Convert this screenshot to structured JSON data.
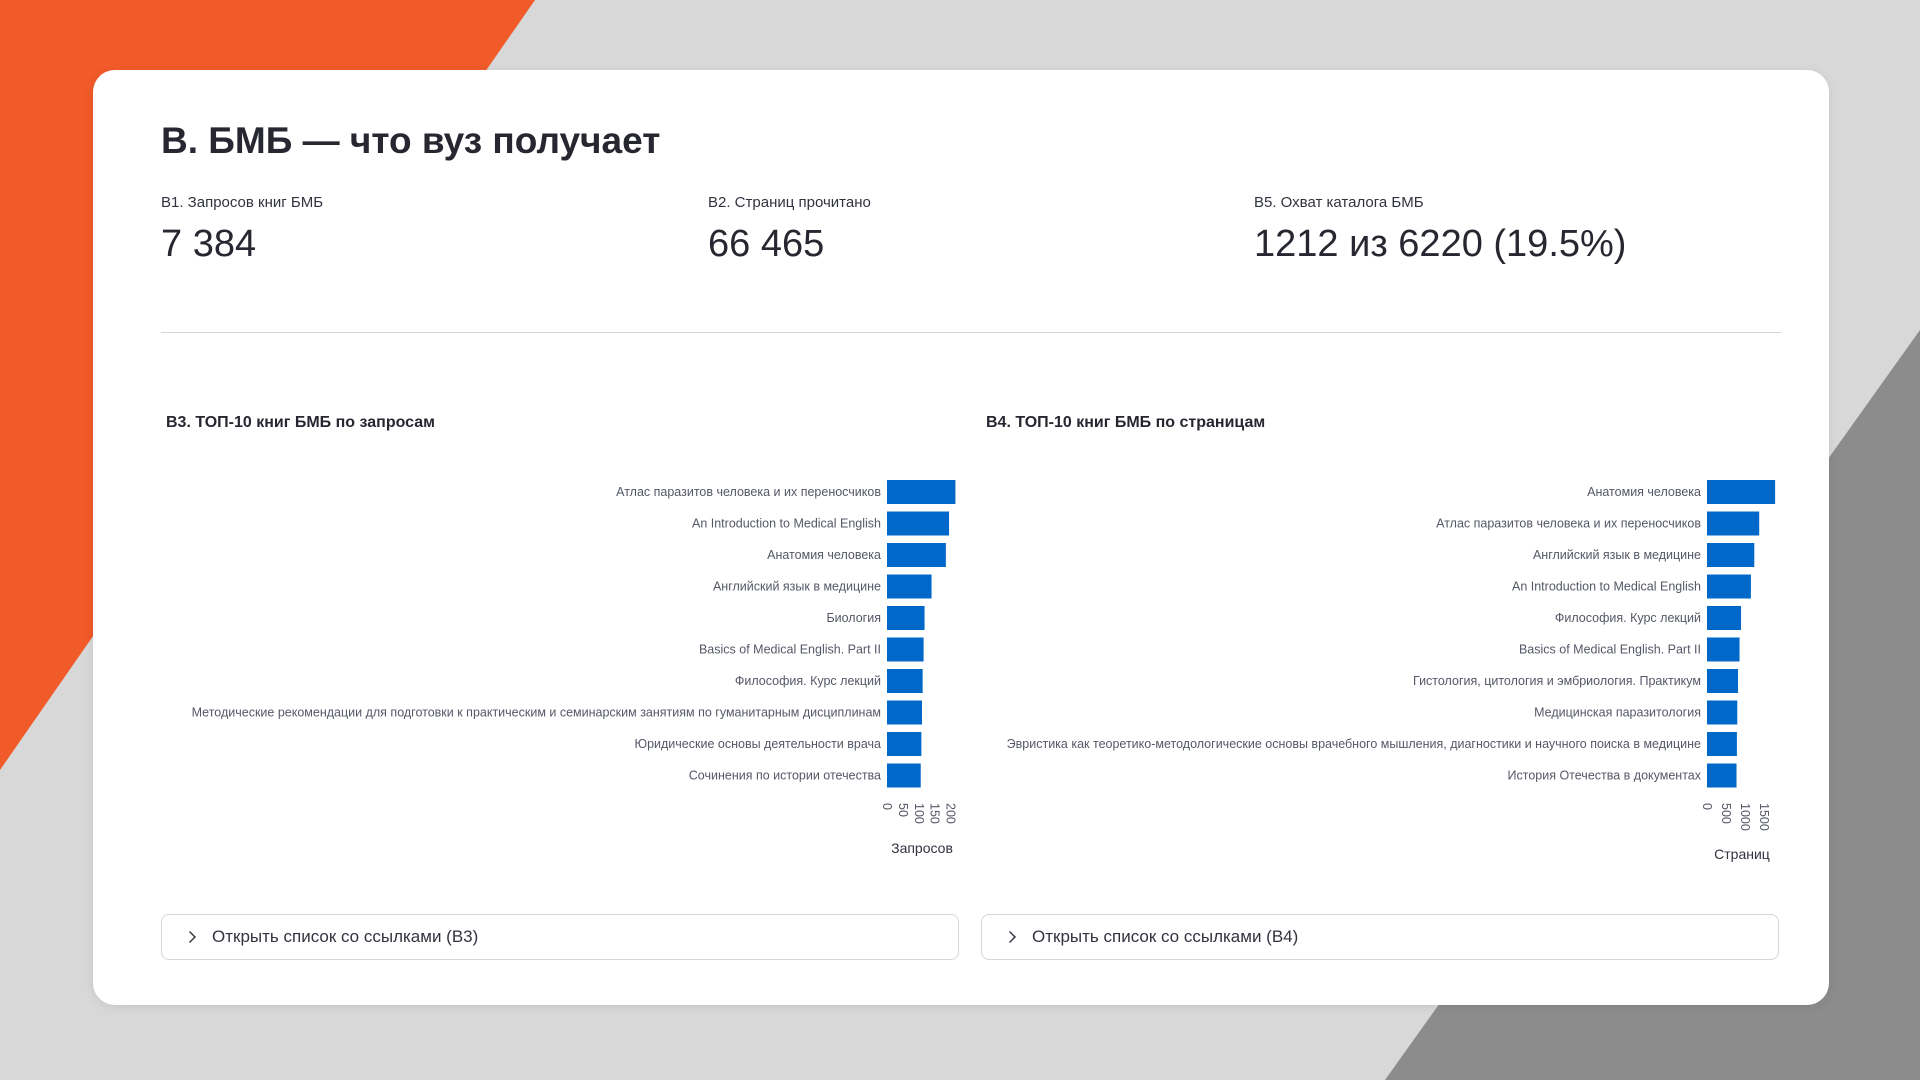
{
  "colors": {
    "accent": "#f15a29",
    "bar": "#0068c9",
    "background": "#d8d8d8",
    "dark_shape": "#8c8c8c"
  },
  "section_title": "B. БМБ — что вуз получает",
  "metrics": [
    {
      "label": "B1. Запросов книг БМБ",
      "value": "7 384"
    },
    {
      "label": "B2. Страниц прочитано",
      "value": "66 465"
    },
    {
      "label": "B5. Охват каталога БМБ",
      "value": "1212 из 6220 (19.5%)"
    }
  ],
  "charts": [
    {
      "title": "B3. ТОП-10 книг БМБ по запросам",
      "chart_data": {
        "type": "bar",
        "orientation": "horizontal",
        "categories": [
          "Атлас паразитов человека и их переносчиков",
          "An Introduction to Medical English",
          "Анатомия человека",
          "Английский язык в медицине",
          "Биология",
          "Basics of Medical English. Part II",
          "Философия. Курс лекций",
          "Методические рекомендации для подготовки к практическим и семинарским занятиям по гуманитарным дисциплинам",
          "Юридические основы деятельности врача",
          "Сочинения по истории отечества"
        ],
        "values": [
          215,
          195,
          185,
          140,
          118,
          115,
          112,
          110,
          108,
          106
        ],
        "xlabel": "Запросов",
        "ticks": [
          0,
          50,
          100,
          150,
          200
        ],
        "xlim": [
          0,
          220
        ]
      },
      "expander_label": "Открыть список со ссылками (B3)"
    },
    {
      "title": "B4. ТОП-10 книг БМБ по страницам",
      "chart_data": {
        "type": "bar",
        "orientation": "horizontal",
        "categories": [
          "Анатомия человека",
          "Атлас паразитов человека и их переносчиков",
          "Английский язык в медицине",
          "An Introduction to Medical English",
          "Философия. Курс лекций",
          "Basics of Medical English. Part II",
          "Гистология, цитология и эмбриология. Практикум",
          "Медицинская паразитология",
          "Эвристика как теоретико-методологические основы врачебного мышления, диагностики и научного поиска в медицине",
          "История Отечества в документах"
        ],
        "values": [
          1800,
          1380,
          1250,
          1160,
          900,
          860,
          820,
          800,
          790,
          780
        ],
        "xlabel": "Страниц",
        "ticks": [
          0,
          500,
          1000,
          1500
        ],
        "xlim": [
          0,
          1850
        ]
      },
      "expander_label": "Открыть список со ссылками (B4)"
    }
  ]
}
